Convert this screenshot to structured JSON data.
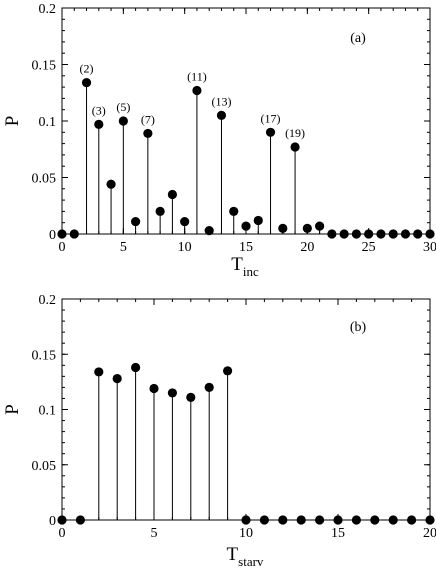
{
  "chart_data": [
    {
      "type": "scatter",
      "panel_label": "(a)",
      "xlabel": "T",
      "xlabel_sub": "inc",
      "ylabel": "P",
      "xlim": [
        0,
        30
      ],
      "ylim": [
        0,
        0.2
      ],
      "xticks": [
        0,
        5,
        10,
        15,
        20,
        25,
        30
      ],
      "xtick_labels": [
        "0",
        "5",
        "10",
        "15",
        "20",
        "25",
        "30"
      ],
      "yticks": [
        0,
        0.05,
        0.1,
        0.15,
        0.2
      ],
      "ytick_labels": [
        "0",
        "0.05",
        "0.1",
        "0.15",
        "0.2"
      ],
      "grid": false,
      "style": "stem with filled circle markers",
      "x": [
        0,
        1,
        2,
        3,
        4,
        5,
        6,
        7,
        8,
        9,
        10,
        11,
        12,
        13,
        14,
        15,
        16,
        17,
        18,
        19,
        20,
        21,
        22,
        23,
        24,
        25,
        26,
        27,
        28,
        29,
        30
      ],
      "values": [
        0,
        0,
        0.134,
        0.097,
        0.044,
        0.1,
        0.011,
        0.089,
        0.02,
        0.035,
        0.011,
        0.127,
        0.003,
        0.105,
        0.02,
        0.007,
        0.012,
        0.09,
        0.005,
        0.077,
        0.005,
        0.007,
        0,
        0,
        0,
        0,
        0,
        0,
        0,
        0,
        0
      ],
      "annotations": [
        {
          "x": 2,
          "text": "(2)"
        },
        {
          "x": 3,
          "text": "(3)"
        },
        {
          "x": 5,
          "text": "(5)"
        },
        {
          "x": 7,
          "text": "(7)"
        },
        {
          "x": 11,
          "text": "(11)"
        },
        {
          "x": 13,
          "text": "(13)"
        },
        {
          "x": 17,
          "text": "(17)"
        },
        {
          "x": 19,
          "text": "(19)"
        }
      ]
    },
    {
      "type": "scatter",
      "panel_label": "(b)",
      "xlabel": "T",
      "xlabel_sub": "starv",
      "ylabel": "P",
      "xlim": [
        0,
        20
      ],
      "ylim": [
        0,
        0.2
      ],
      "xticks": [
        0,
        5,
        10,
        15,
        20
      ],
      "xtick_labels": [
        "0",
        "5",
        "10",
        "15",
        "20"
      ],
      "yticks": [
        0,
        0.05,
        0.1,
        0.15,
        0.2
      ],
      "ytick_labels": [
        "0",
        "0.05",
        "0.1",
        "0.15",
        "0.2"
      ],
      "grid": false,
      "style": "stem with filled circle markers",
      "x": [
        0,
        1,
        2,
        3,
        4,
        5,
        6,
        7,
        8,
        9,
        10,
        11,
        12,
        13,
        14,
        15,
        16,
        17,
        18,
        19,
        20
      ],
      "values": [
        0,
        0,
        0.134,
        0.128,
        0.138,
        0.119,
        0.115,
        0.111,
        0.12,
        0.135,
        0,
        0,
        0,
        0,
        0,
        0,
        0,
        0,
        0,
        0,
        0
      ],
      "annotations": []
    }
  ]
}
